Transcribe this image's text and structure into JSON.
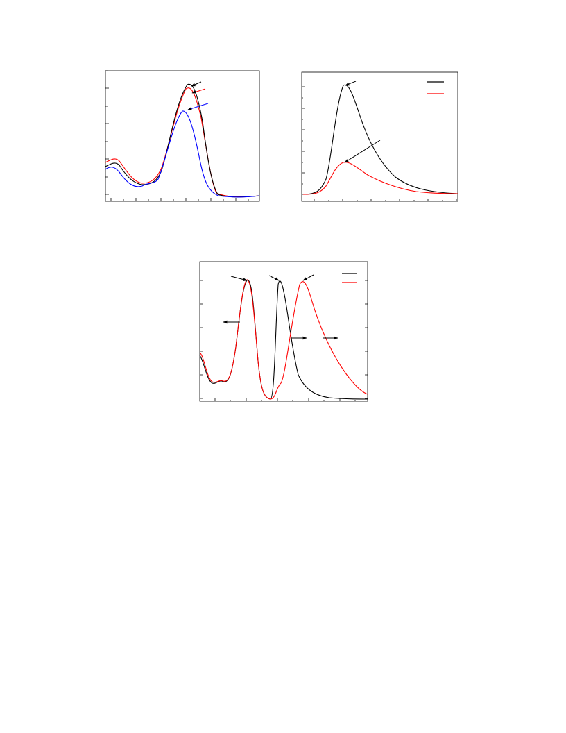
{
  "figure": {
    "panels": [
      {
        "series": [
          {
            "color": "#000000"
          },
          {
            "color": "#ff0000"
          },
          {
            "color": "#0000ff"
          }
        ]
      },
      {
        "series": [
          {
            "color": "#000000"
          },
          {
            "color": "#ff0000"
          }
        ]
      },
      {
        "series": [
          {
            "color": "#000000"
          },
          {
            "color": "#ff0000"
          }
        ]
      }
    ]
  }
}
